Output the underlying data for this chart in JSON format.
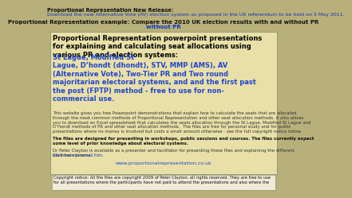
{
  "bg_color": "#b8b07a",
  "box_bg": "#e8e0a8",
  "box_border": "#999977",
  "cr_box_bg": "#f0ead8",
  "top_line1_bold": "Proportional Representation New Release: ",
  "top_line1_link": "Download the new Alternative Vote (AV) election system as proposed in the UK referendum to be held on 5 May 2011.",
  "top_line2_bold": "Proportional Representation example: ",
  "top_line2_link": "Compare the 2010 UK election results with and without PR",
  "heading_black": "Proportional Representation powerpoint presentations\nfor explaining and calculating seat allocations using\nvarious PR and election systems: ",
  "heading_blue": "St Lague, Modified St\nLague, D’hondt (dhondt), STV, MMP (AMS), AV\n(Alternative Vote), Two-Tier PR and Two round\nmajoritarian electoral systems, and and the first past\nthe post (FPTP) method - free to use for non-\ncommercial use.",
  "body1": "This website gives you free Powerpoint demonstrations that explain how to calculate the seats that are allocated\nthrough the most common methods of Proportional Representation and other seat allocation methods. It also allows\nyou to download an Excel spreadsheet that calculates the seats allocation through the St Lague, Modified St Lague and\nD’Hondt methods of PR and other seat allocation methods.  The files are free for personal study and for public\npresentations where no money is involved but costs a small amount otherwise - see the full copyright notice below.",
  "body2_bold": "The files are designed for presenting in workshops, public sessions and courses. The files currently expect\nsome level of prior knowledge about electoral systems.",
  "body3": "Dr Peter Clayton is available as a presenter and facilitator for presenting these files and explaining the different\nelectoral systems.  ",
  "body3_link": "Click here to email him.",
  "website": "www.proportionalrepresentation.co.uk",
  "copyright": "Copyright notice: All the files are copyright 2009 of Peter Clayton, all rights reserved. They are free to use\nfor all presentations where the participants have not paid to attend the presentations and also where the",
  "color_black": "#000000",
  "color_dark": "#111111",
  "color_body": "#333333",
  "color_link_top": "#1133bb",
  "color_link_blue": "#2244cc",
  "color_link_bright": "#3344ee"
}
